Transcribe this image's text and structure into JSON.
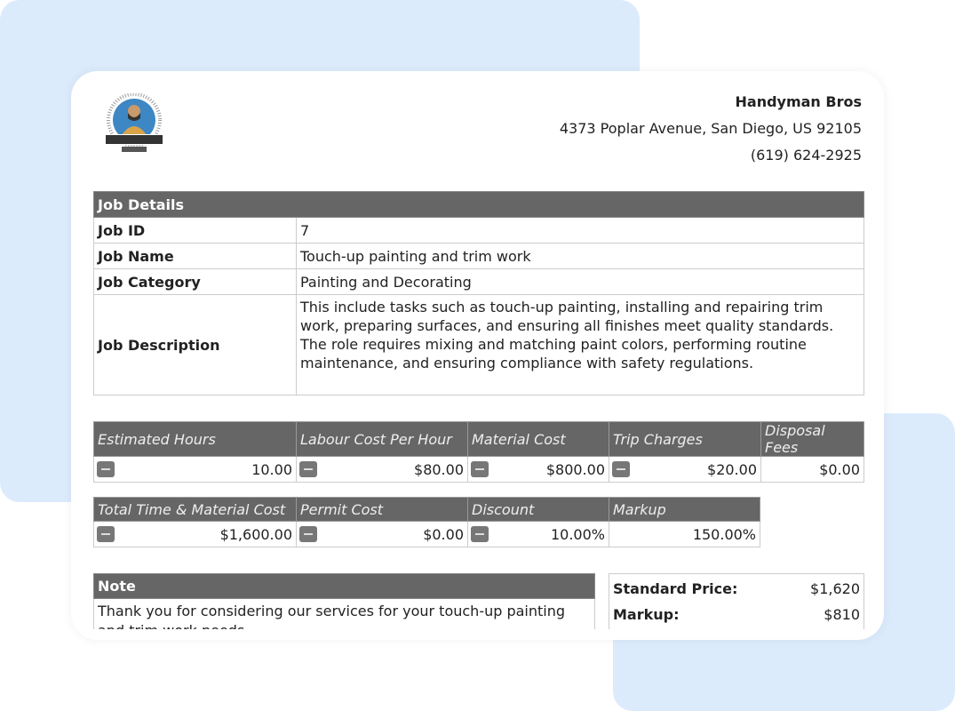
{
  "company": {
    "name": "Handyman Bros",
    "address": "4373 Poplar Avenue, San Diego, US 92105",
    "phone": "(619) 624-2925",
    "logo_text": "HANDYMAN BROS"
  },
  "job": {
    "header": "Job Details",
    "rows": [
      {
        "label": "Job ID",
        "value": "7"
      },
      {
        "label": "Job Name",
        "value": "Touch-up painting and trim work"
      },
      {
        "label": "Job Category",
        "value": "Painting and Decorating"
      },
      {
        "label": "Job Description",
        "value": "This include tasks such as touch-up painting, installing and repairing trim work, preparing surfaces, and ensuring all finishes meet quality standards. The role requires mixing and matching paint colors, performing routine maintenance, and ensuring compliance with safety regulations."
      }
    ]
  },
  "costs1": {
    "headers": [
      "Estimated Hours",
      "Labour Cost Per Hour",
      "Material Cost",
      "Trip Charges",
      "Disposal Fees"
    ],
    "values": [
      "10.00",
      "$80.00",
      "$800.00",
      "$20.00",
      "$0.00"
    ]
  },
  "costs2": {
    "headers": [
      "Total Time & Material Cost",
      "Permit Cost",
      "Discount",
      "Markup"
    ],
    "values": [
      "$1,600.00",
      "$0.00",
      "10.00%",
      "150.00%"
    ]
  },
  "note": {
    "header": "Note",
    "text": "Thank you for considering our services for your touch-up painting and trim work needs."
  },
  "price": {
    "rows": [
      {
        "label": "Standard Price:",
        "value": "$1,620"
      },
      {
        "label": "Markup:",
        "value": "$810"
      }
    ]
  }
}
